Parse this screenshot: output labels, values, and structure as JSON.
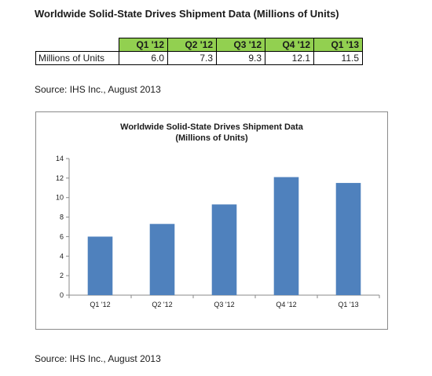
{
  "page": {
    "title": "Worldwide Solid-State Drives Shipment Data (Millions of Units)",
    "source_top": "Source: IHS Inc., August 2013",
    "source_bottom": "Source: IHS Inc., August 2013"
  },
  "table": {
    "row_label": "Millions of Units",
    "header_color": "#92d050",
    "columns": [
      "Q1 '12",
      "Q2 '12",
      "Q3 '12",
      "Q4 '12",
      "Q1 '13"
    ],
    "values": [
      "6.0",
      "7.3",
      "9.3",
      "12.1",
      "11.5"
    ]
  },
  "chart_data": {
    "type": "bar",
    "title_line1": "Worldwide Solid-State Drives Shipment Data",
    "title_line2": "(Millions of Units)",
    "categories": [
      "Q1 '12",
      "Q2 '12",
      "Q3 '12",
      "Q4 '12",
      "Q1 '13"
    ],
    "values": [
      6.0,
      7.3,
      9.3,
      12.1,
      11.5
    ],
    "ylim": [
      0,
      14
    ],
    "yticks": [
      0,
      2,
      4,
      6,
      8,
      10,
      12,
      14
    ],
    "xlabel": "",
    "ylabel": "",
    "bar_color": "#4f81bd",
    "grid": false,
    "legend": "none"
  }
}
